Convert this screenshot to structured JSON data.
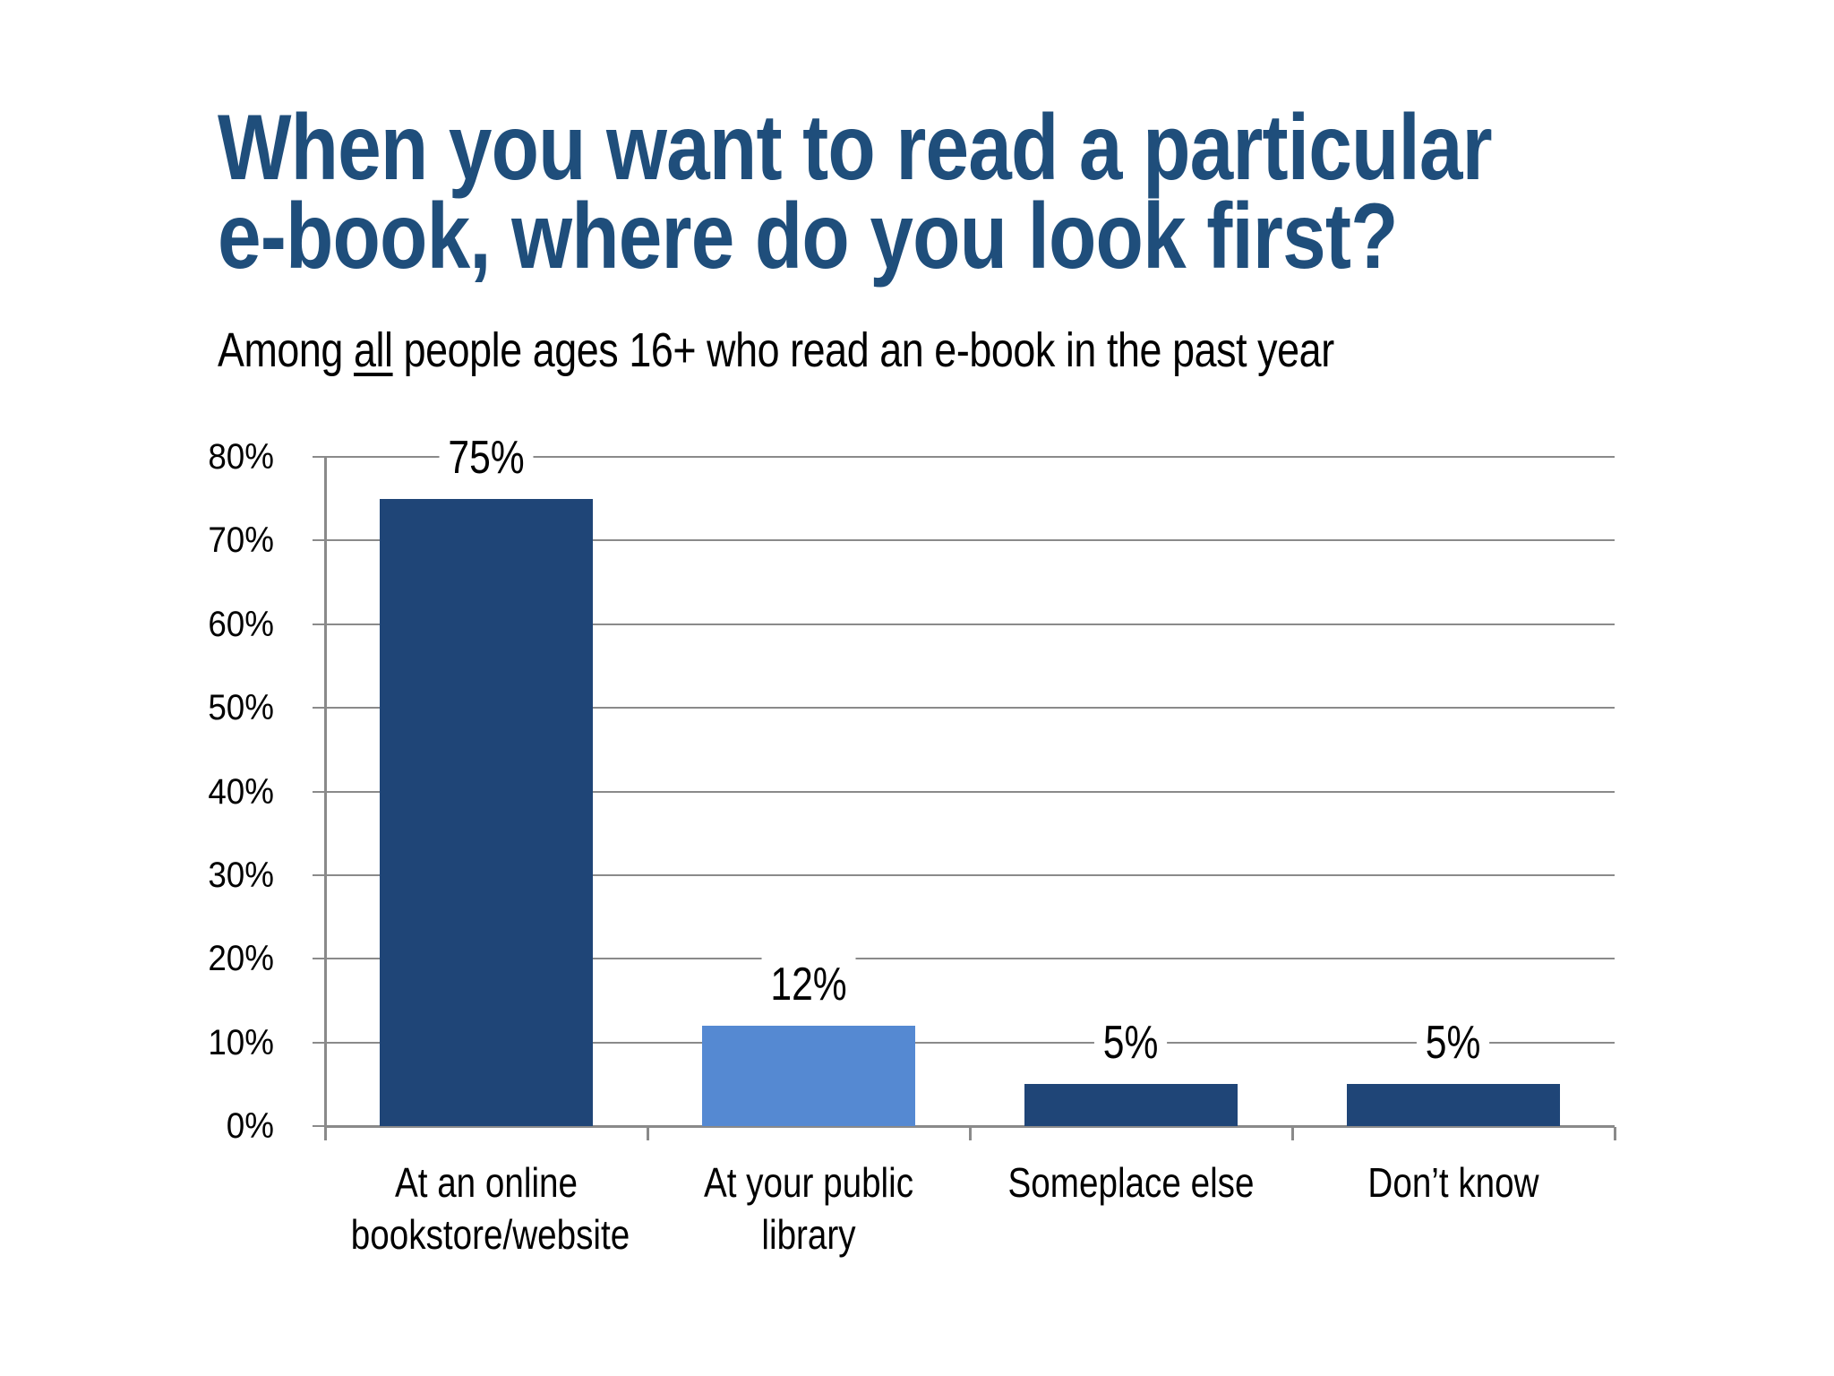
{
  "slide": {
    "title_lines": [
      "When you want to read a particular",
      "e-book, where do you look first?"
    ],
    "subtitle_parts": {
      "prefix": "Among ",
      "underlined": "all",
      "suffix": " people ages 16+ who read an e-book in the past year"
    }
  },
  "colors": {
    "title_text": "#1F4E7B",
    "dark_bar": "#1F4577",
    "light_bar": "#5589D2",
    "gridline": "#8A8A8A",
    "label_text": "#000000",
    "background": "#FFFFFF"
  },
  "chart_data": {
    "type": "bar",
    "title": "When you want to read a particular e-book, where do you look first?",
    "subtitle": "Among all people ages 16+ who read an e-book in the past year",
    "categories": [
      "At an online bookstore/website",
      "At your public library",
      "Someplace else",
      "Don’t know"
    ],
    "category_lines": [
      [
        "At an online",
        "bookstore/website"
      ],
      [
        "At your public",
        "library"
      ],
      [
        "Someplace else"
      ],
      [
        "Don’t know"
      ]
    ],
    "values": [
      75,
      12,
      5,
      5
    ],
    "value_labels": [
      "75%",
      "12%",
      "5%",
      "5%"
    ],
    "bar_colors": [
      "#1F4577",
      "#5589D2",
      "#1F4577",
      "#1F4577"
    ],
    "xlabel": "",
    "ylabel": "",
    "ylim": [
      0,
      80
    ],
    "ytick_step": 10,
    "ytick_labels": [
      "0%",
      "10%",
      "20%",
      "30%",
      "40%",
      "50%",
      "60%",
      "70%",
      "80%"
    ],
    "grid": true,
    "legend": false
  }
}
